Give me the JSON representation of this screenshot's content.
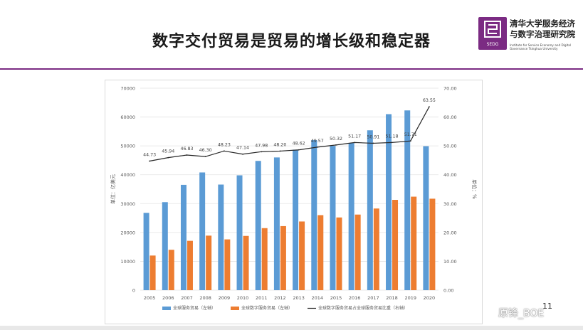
{
  "slide": {
    "title": "数字交付贸易是贸易的增长级和稳定器",
    "page_number": "11",
    "watermark": "原锋_BOE"
  },
  "logo": {
    "badge": "SEDG",
    "name_line1": "清华大学服务经济",
    "name_line2": "与数字治理研究院",
    "name_en": "Institute for Service Economy and Digital Governance Tsinghua University",
    "color": "#7b2b83"
  },
  "chart_data": {
    "type": "bar",
    "categories": [
      "2005",
      "2006",
      "2007",
      "2008",
      "2009",
      "2010",
      "2011",
      "2012",
      "2013",
      "2014",
      "2015",
      "2016",
      "2017",
      "2018",
      "2019",
      "2020"
    ],
    "series": [
      {
        "name": "全球服务贸易（左轴）",
        "type": "bar",
        "color": "#5b9bd5",
        "values": [
          26800,
          30500,
          36500,
          40800,
          36600,
          39800,
          44800,
          46000,
          48700,
          52000,
          50000,
          51000,
          55400,
          61000,
          62300,
          49900
        ]
      },
      {
        "name": "全球数字服务贸易（左轴）",
        "type": "bar",
        "color": "#ed7d31",
        "values": [
          12000,
          14000,
          17100,
          18900,
          17600,
          18800,
          21500,
          22200,
          23800,
          26000,
          25200,
          26200,
          28300,
          31300,
          32400,
          31700
        ]
      },
      {
        "name": "全球数字服务贸易占全球服务贸易比重（右轴）",
        "type": "line",
        "color": "#262626",
        "axis": "right",
        "values": [
          44.73,
          45.94,
          46.83,
          46.3,
          48.23,
          47.14,
          47.98,
          48.2,
          48.62,
          49.57,
          50.32,
          51.17,
          50.91,
          51.18,
          51.71,
          63.55
        ],
        "labels": [
          "44.73",
          "45.94",
          "46.83",
          "46.30",
          "48.23",
          "47.14",
          "47.98",
          "48.20",
          "48.62",
          "49.57",
          "50.32",
          "51.17",
          "50.91",
          "51.18",
          "51.71",
          "63.55"
        ]
      }
    ],
    "ylabel_left": "单位：亿美元",
    "ylabel_right": "单位：%",
    "ylim_left": [
      0,
      70000
    ],
    "ylim_right": [
      0,
      70
    ],
    "yticks_left": [
      "0",
      "10000",
      "20000",
      "30000",
      "40000",
      "50000",
      "60000",
      "70000"
    ],
    "yticks_right": [
      "0.00",
      "10.00",
      "20.00",
      "30.00",
      "40.00",
      "50.00",
      "60.00",
      "70.00"
    ],
    "grid": true,
    "legend_position": "bottom"
  }
}
